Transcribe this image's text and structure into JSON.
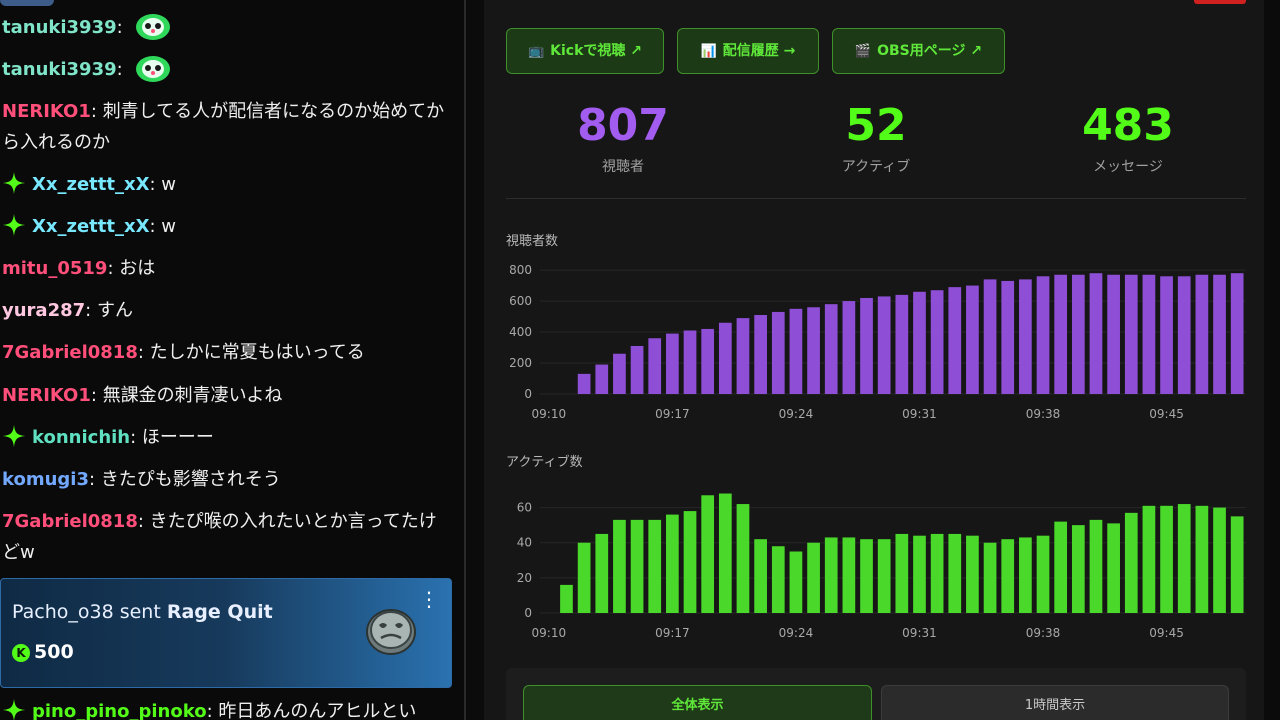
{
  "chat": {
    "messages": [
      {
        "user": "tanuki3939",
        "color": "#7fe4c8",
        "badge": false,
        "text": "",
        "emote": true,
        "top": 12
      },
      {
        "user": "tanuki3939",
        "color": "#7fe4c8",
        "badge": false,
        "text": "",
        "emote": true,
        "top": 54
      },
      {
        "user": "NERIKO1",
        "color": "#ff4f7a",
        "badge": false,
        "text": "刺青してる人が配信者になるのか始めてから入れるのか",
        "emote": false,
        "top": 96
      },
      {
        "user": "Xx_zettt_xX",
        "color": "#78e8ff",
        "badge": true,
        "text": "w",
        "emote": false,
        "top": 169
      },
      {
        "user": "Xx_zettt_xX",
        "color": "#78e8ff",
        "badge": true,
        "text": "w",
        "emote": false,
        "top": 211
      },
      {
        "user": "mitu_0519",
        "color": "#ff4f7a",
        "badge": false,
        "text": "おは",
        "emote": false,
        "top": 253
      },
      {
        "user": "yura287",
        "color": "#ffc8e0",
        "badge": false,
        "text": "すん",
        "emote": false,
        "top": 295
      },
      {
        "user": "7Gabriel0818",
        "color": "#ff4f7a",
        "badge": false,
        "text": "たしかに常夏もはいってる",
        "emote": false,
        "top": 337
      },
      {
        "user": "NERIKO1",
        "color": "#ff4f7a",
        "badge": false,
        "text": "無課金の刺青凄いよね",
        "emote": false,
        "top": 380
      },
      {
        "user": "konnichih",
        "color": "#5fe0c0",
        "badge": true,
        "text": "ほーーー",
        "emote": false,
        "top": 422
      },
      {
        "user": "komugi3",
        "color": "#73a8ff",
        "badge": false,
        "text": "きたぴも影響されそう",
        "emote": false,
        "top": 464
      },
      {
        "user": "7Gabriel0818",
        "color": "#ff4f7a",
        "badge": false,
        "text": "きたぴ喉の入れたいとか言ってたけどw",
        "emote": false,
        "top": 506
      },
      {
        "user": "pino_pino_pinoko",
        "color": "#53fc18",
        "badge": true,
        "text": "昨日あんのんアヒルとい",
        "emote": false,
        "top": 696
      }
    ],
    "gift": {
      "user": "Pacho_o38",
      "action": "sent",
      "item": "Rage Quit",
      "amount": "500",
      "coin_symbol": "K",
      "menu_icon": "more-vertical-icon"
    }
  },
  "dashboard": {
    "buttons": [
      {
        "icon": "📺",
        "label": "Kickで視聴",
        "arrow": "↗"
      },
      {
        "icon": "📊",
        "label": "配信履歴",
        "arrow": "→"
      },
      {
        "icon": "🎬",
        "label": "OBS用ページ",
        "arrow": "↗"
      }
    ],
    "stats": [
      {
        "value": "807",
        "label": "視聴者",
        "color": "#a25cf0"
      },
      {
        "value": "52",
        "label": "アクティブ",
        "color": "#53fc18"
      },
      {
        "value": "483",
        "label": "メッセージ",
        "color": "#53fc18"
      }
    ],
    "range_buttons": {
      "all": "全体表示",
      "hour": "1時間表示"
    }
  },
  "chart_data": [
    {
      "type": "bar",
      "title": "視聴者数",
      "color": "#8e4fd6",
      "x_ticks": [
        "09:10",
        "09:17",
        "09:24",
        "09:31",
        "09:38",
        "09:45"
      ],
      "y_ticks": [
        0,
        200,
        400,
        600,
        800
      ],
      "ylim": [
        0,
        820
      ],
      "values": [
        0,
        0,
        130,
        190,
        260,
        310,
        360,
        390,
        410,
        420,
        460,
        490,
        510,
        530,
        550,
        560,
        580,
        600,
        620,
        630,
        640,
        660,
        670,
        690,
        700,
        740,
        730,
        740,
        760,
        770,
        770,
        780,
        770,
        770,
        770,
        760,
        760,
        770,
        770,
        780
      ]
    },
    {
      "type": "bar",
      "title": "アクティブ数",
      "color": "#4ad82a",
      "x_ticks": [
        "09:10",
        "09:17",
        "09:24",
        "09:31",
        "09:38",
        "09:45"
      ],
      "y_ticks": [
        0,
        20,
        40,
        60
      ],
      "ylim": [
        0,
        70
      ],
      "values": [
        0,
        16,
        40,
        45,
        53,
        53,
        53,
        56,
        58,
        67,
        68,
        62,
        42,
        38,
        35,
        40,
        43,
        43,
        42,
        42,
        45,
        44,
        45,
        45,
        44,
        40,
        42,
        43,
        44,
        52,
        50,
        53,
        51,
        57,
        61,
        61,
        62,
        61,
        60,
        55
      ]
    }
  ]
}
